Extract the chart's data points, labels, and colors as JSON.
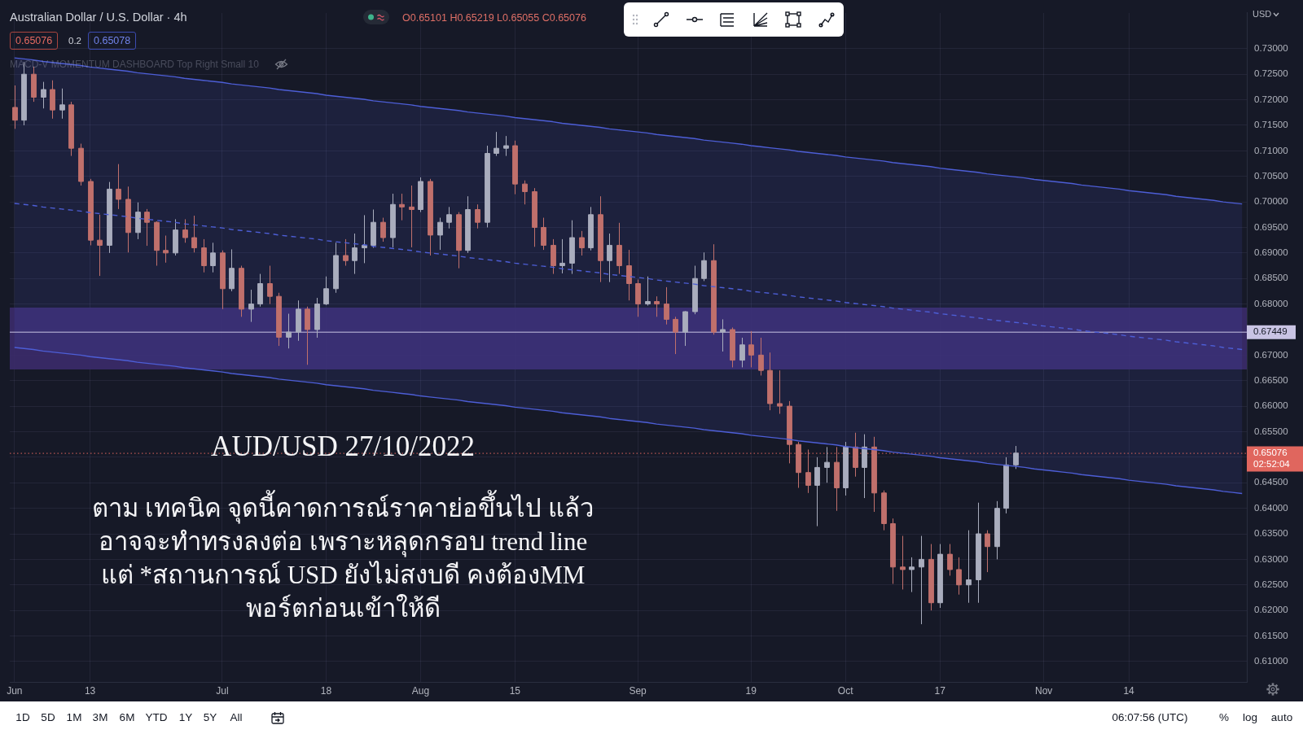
{
  "chart_data": {
    "type": "candlestick",
    "title": "Australian Dollar / U.S. Dollar · 4h",
    "ylabel": "USD",
    "categories": [
      "Jun",
      null,
      null,
      null,
      null,
      null,
      null,
      null,
      "13",
      null,
      null,
      null,
      null,
      null,
      null,
      null,
      null,
      null,
      null,
      null,
      null,
      null,
      "Jul",
      null,
      null,
      null,
      null,
      null,
      null,
      null,
      null,
      null,
      null,
      "18",
      null,
      null,
      null,
      null,
      null,
      null,
      null,
      null,
      null,
      "Aug",
      null,
      null,
      null,
      null,
      null,
      null,
      null,
      null,
      null,
      "15",
      null,
      null,
      null,
      null,
      null,
      null,
      null,
      null,
      null,
      null,
      null,
      null,
      "Sep",
      null,
      null,
      null,
      null,
      null,
      null,
      null,
      null,
      null,
      null,
      null,
      "19",
      null,
      null,
      null,
      null,
      null,
      null,
      null,
      null,
      null,
      "Oct",
      null,
      null,
      null,
      null,
      null,
      null,
      null,
      null,
      null,
      "17",
      null,
      null,
      null,
      null,
      null,
      null,
      null,
      null,
      null,
      null,
      "Nov",
      null,
      null,
      null,
      null,
      null,
      null,
      null,
      null,
      "14",
      null,
      null,
      null,
      null,
      null,
      null,
      null,
      null,
      null,
      null,
      null,
      null
    ],
    "ohlc": [
      [
        0.7185,
        0.7228,
        0.7143,
        0.716
      ],
      [
        0.716,
        0.7274,
        0.715,
        0.725
      ],
      [
        0.725,
        0.7265,
        0.7196,
        0.7205
      ],
      [
        0.7205,
        0.7235,
        0.7183,
        0.722
      ],
      [
        0.722,
        0.7238,
        0.7163,
        0.718
      ],
      [
        0.718,
        0.7222,
        0.7163,
        0.719
      ],
      [
        0.719,
        0.7196,
        0.709,
        0.7105
      ],
      [
        0.7105,
        0.7114,
        0.7032,
        0.704
      ],
      [
        0.704,
        0.7045,
        0.6915,
        0.6925
      ],
      [
        0.6925,
        0.6975,
        0.6855,
        0.6915
      ],
      [
        0.6915,
        0.7039,
        0.69,
        0.7025
      ],
      [
        0.7025,
        0.7074,
        0.6986,
        0.7005
      ],
      [
        0.7005,
        0.703,
        0.6901,
        0.694
      ],
      [
        0.694,
        0.6999,
        0.6927,
        0.698
      ],
      [
        0.698,
        0.6986,
        0.6914,
        0.696
      ],
      [
        0.696,
        0.6962,
        0.6875,
        0.6905
      ],
      [
        0.6905,
        0.6934,
        0.6881,
        0.69
      ],
      [
        0.69,
        0.6966,
        0.6895,
        0.6945
      ],
      [
        0.6945,
        0.6966,
        0.692,
        0.693
      ],
      [
        0.693,
        0.6973,
        0.6901,
        0.691
      ],
      [
        0.691,
        0.6927,
        0.6862,
        0.6875
      ],
      [
        0.6875,
        0.692,
        0.6862,
        0.69
      ],
      [
        0.69,
        0.6905,
        0.679,
        0.683
      ],
      [
        0.683,
        0.6907,
        0.6825,
        0.687
      ],
      [
        0.687,
        0.6875,
        0.6775,
        0.679
      ],
      [
        0.679,
        0.6828,
        0.6765,
        0.68
      ],
      [
        0.68,
        0.6859,
        0.6795,
        0.684
      ],
      [
        0.684,
        0.6875,
        0.68,
        0.6815
      ],
      [
        0.6815,
        0.6822,
        0.6718,
        0.6735
      ],
      [
        0.6735,
        0.6781,
        0.6713,
        0.6745
      ],
      [
        0.6745,
        0.6807,
        0.6728,
        0.679
      ],
      [
        0.679,
        0.6795,
        0.6681,
        0.675
      ],
      [
        0.675,
        0.6812,
        0.6734,
        0.68
      ],
      [
        0.68,
        0.6854,
        0.6798,
        0.683
      ],
      [
        0.683,
        0.692,
        0.6822,
        0.6895
      ],
      [
        0.6895,
        0.6927,
        0.6875,
        0.6885
      ],
      [
        0.6885,
        0.6938,
        0.6859,
        0.691
      ],
      [
        0.691,
        0.6974,
        0.688,
        0.6915
      ],
      [
        0.6915,
        0.6985,
        0.691,
        0.696
      ],
      [
        0.696,
        0.6969,
        0.6922,
        0.693
      ],
      [
        0.693,
        0.7016,
        0.6911,
        0.6995
      ],
      [
        0.6995,
        0.7016,
        0.6964,
        0.699
      ],
      [
        0.699,
        0.7032,
        0.6911,
        0.6985
      ],
      [
        0.6985,
        0.7048,
        0.698,
        0.704
      ],
      [
        0.704,
        0.7045,
        0.6895,
        0.6935
      ],
      [
        0.6935,
        0.6969,
        0.6906,
        0.696
      ],
      [
        0.696,
        0.699,
        0.6948,
        0.6975
      ],
      [
        0.6975,
        0.698,
        0.687,
        0.6905
      ],
      [
        0.6905,
        0.7011,
        0.69,
        0.6985
      ],
      [
        0.6985,
        0.6995,
        0.6948,
        0.696
      ],
      [
        0.696,
        0.711,
        0.695,
        0.7095
      ],
      [
        0.7095,
        0.7137,
        0.709,
        0.7105
      ],
      [
        0.7105,
        0.7129,
        0.709,
        0.711
      ],
      [
        0.711,
        0.712,
        0.7015,
        0.7035
      ],
      [
        0.7035,
        0.7042,
        0.6995,
        0.702
      ],
      [
        0.702,
        0.7027,
        0.6912,
        0.695
      ],
      [
        0.695,
        0.6969,
        0.6906,
        0.6915
      ],
      [
        0.6915,
        0.6927,
        0.6859,
        0.6875
      ],
      [
        0.6875,
        0.6927,
        0.686,
        0.688
      ],
      [
        0.688,
        0.6964,
        0.6859,
        0.693
      ],
      [
        0.693,
        0.6943,
        0.6895,
        0.691
      ],
      [
        0.691,
        0.699,
        0.6905,
        0.6975
      ],
      [
        0.6975,
        0.7011,
        0.6843,
        0.6885
      ],
      [
        0.6885,
        0.6938,
        0.6843,
        0.6915
      ],
      [
        0.6915,
        0.6959,
        0.6859,
        0.6875
      ],
      [
        0.6875,
        0.6906,
        0.6807,
        0.684
      ],
      [
        0.684,
        0.6848,
        0.6775,
        0.68
      ],
      [
        0.68,
        0.6854,
        0.6797,
        0.6805
      ],
      [
        0.6805,
        0.6815,
        0.6775,
        0.68
      ],
      [
        0.68,
        0.6833,
        0.676,
        0.677
      ],
      [
        0.677,
        0.6775,
        0.6702,
        0.6745
      ],
      [
        0.6745,
        0.6786,
        0.6718,
        0.6785
      ],
      [
        0.6785,
        0.6875,
        0.678,
        0.685
      ],
      [
        0.685,
        0.6901,
        0.6845,
        0.6885
      ],
      [
        0.6885,
        0.6917,
        0.674,
        0.6745
      ],
      [
        0.6745,
        0.677,
        0.6707,
        0.675
      ],
      [
        0.675,
        0.6754,
        0.6676,
        0.669
      ],
      [
        0.669,
        0.6734,
        0.6676,
        0.672
      ],
      [
        0.672,
        0.6747,
        0.6676,
        0.67
      ],
      [
        0.67,
        0.6734,
        0.666,
        0.667
      ],
      [
        0.667,
        0.6705,
        0.6592,
        0.6605
      ],
      [
        0.6605,
        0.667,
        0.6585,
        0.66
      ],
      [
        0.66,
        0.661,
        0.6488,
        0.6525
      ],
      [
        0.6525,
        0.653,
        0.644,
        0.647
      ],
      [
        0.647,
        0.6515,
        0.643,
        0.6445
      ],
      [
        0.6445,
        0.65,
        0.6365,
        0.648
      ],
      [
        0.648,
        0.652,
        0.645,
        0.649
      ],
      [
        0.649,
        0.652,
        0.6395,
        0.644
      ],
      [
        0.644,
        0.653,
        0.6425,
        0.652
      ],
      [
        0.652,
        0.6548,
        0.6462,
        0.648
      ],
      [
        0.648,
        0.6545,
        0.642,
        0.652
      ],
      [
        0.652,
        0.654,
        0.6393,
        0.643
      ],
      [
        0.643,
        0.6435,
        0.6357,
        0.637
      ],
      [
        0.637,
        0.638,
        0.6252,
        0.6285
      ],
      [
        0.6285,
        0.6346,
        0.6241,
        0.628
      ],
      [
        0.628,
        0.6304,
        0.6236,
        0.6285
      ],
      [
        0.6285,
        0.6346,
        0.6173,
        0.63
      ],
      [
        0.63,
        0.633,
        0.62,
        0.6215
      ],
      [
        0.6215,
        0.633,
        0.6205,
        0.631
      ],
      [
        0.631,
        0.633,
        0.6268,
        0.628
      ],
      [
        0.628,
        0.6304,
        0.6231,
        0.625
      ],
      [
        0.625,
        0.6357,
        0.6215,
        0.626
      ],
      [
        0.626,
        0.6411,
        0.6215,
        0.635
      ],
      [
        0.635,
        0.6357,
        0.6275,
        0.6325
      ],
      [
        0.6325,
        0.6414,
        0.63,
        0.64
      ],
      [
        0.64,
        0.65,
        0.639,
        0.6485
      ],
      [
        0.6485,
        0.6522,
        0.6477,
        0.6508
      ],
      null,
      null,
      null,
      null,
      null,
      null,
      null,
      null,
      null,
      null,
      null,
      null,
      null,
      null,
      null,
      null,
      null,
      null,
      null,
      null,
      null,
      null,
      null,
      null
    ],
    "colors": [
      "#c0706c",
      "#a9adbd",
      "#c0706c",
      "#a9adbd",
      "#c0706c",
      "#a9adbd",
      "#c0706c",
      "#c0706c",
      "#c0706c",
      "#c0706c",
      "#a9adbd",
      "#c0706c",
      "#c0706c",
      "#a9adbd",
      "#c0706c",
      "#c0706c",
      "#c0706c",
      "#a9adbd",
      "#c0706c",
      "#c0706c",
      "#c0706c",
      "#a9adbd",
      "#c0706c",
      "#a9adbd",
      "#c0706c",
      "#a9adbd",
      "#a9adbd",
      "#c0706c",
      "#c0706c",
      "#a9adbd",
      "#a9adbd",
      "#c0706c",
      "#a9adbd",
      "#a9adbd",
      "#a9adbd",
      "#c0706c",
      "#a9adbd",
      "#a9adbd",
      "#a9adbd",
      "#c0706c",
      "#a9adbd",
      "#c0706c",
      "#c0706c",
      "#a9adbd",
      "#c0706c",
      "#a9adbd",
      "#a9adbd",
      "#c0706c",
      "#a9adbd",
      "#c0706c",
      "#a9adbd",
      "#a9adbd",
      "#a9adbd",
      "#c0706c",
      "#c0706c",
      "#c0706c",
      "#c0706c",
      "#c0706c",
      "#a9adbd",
      "#a9adbd",
      "#c0706c",
      "#a9adbd",
      "#c0706c",
      "#a9adbd",
      "#c0706c",
      "#c0706c",
      "#c0706c",
      "#a9adbd",
      "#c0706c",
      "#c0706c",
      "#c0706c",
      "#a9adbd",
      "#a9adbd",
      "#a9adbd",
      "#c0706c",
      "#a9adbd",
      "#c0706c",
      "#a9adbd",
      "#c0706c",
      "#c0706c",
      "#c0706c",
      "#c0706c",
      "#c0706c",
      "#c0706c",
      "#c0706c",
      "#a9adbd",
      "#a9adbd",
      "#c0706c",
      "#a9adbd",
      "#c0706c",
      "#a9adbd",
      "#c0706c",
      "#c0706c",
      "#c0706c",
      "#c0706c",
      "#a9adbd",
      "#a9adbd",
      "#c0706c",
      "#a9adbd",
      "#c0706c",
      "#c0706c",
      "#a9adbd",
      "#a9adbd",
      "#c0706c",
      "#a9adbd",
      "#a9adbd",
      "#a9adbd",
      null,
      null,
      null,
      null,
      null,
      null,
      null,
      null,
      null,
      null,
      null,
      null,
      null,
      null,
      null,
      null,
      null,
      null,
      null,
      null,
      null,
      null,
      null,
      null
    ],
    "series": [
      {
        "type": "line",
        "color": "#4d5ed6",
        "values": [
          0.7282,
          0.728,
          0.7278,
          0.7275,
          0.7273,
          0.7271,
          0.7269,
          0.7267,
          0.7264,
          0.7262,
          0.726,
          0.7258,
          0.7256,
          0.7253,
          0.7251,
          0.7249,
          0.7247,
          0.7245,
          0.7242,
          0.724,
          0.7238,
          0.7236,
          0.7234,
          0.7231,
          0.7229,
          0.7227,
          0.7225,
          0.7223,
          0.722,
          0.7218,
          0.7216,
          0.7214,
          0.7212,
          0.7209,
          0.7207,
          0.7205,
          0.7203,
          0.7201,
          0.7198,
          0.7196,
          0.7194,
          0.7192,
          0.719,
          0.7187,
          0.7185,
          0.7183,
          0.7181,
          0.7179,
          0.7176,
          0.7174,
          0.7172,
          0.717,
          0.7168,
          0.7165,
          0.7163,
          0.7161,
          0.7159,
          0.7157,
          0.7154,
          0.7152,
          0.715,
          0.7148,
          0.7146,
          0.7143,
          0.7141,
          0.7139,
          0.7137,
          0.7135,
          0.7132,
          0.713,
          0.7128,
          0.7126,
          0.7124,
          0.7121,
          0.7119,
          0.7117,
          0.7115,
          0.7113,
          0.711,
          0.7108,
          0.7106,
          0.7104,
          0.7102,
          0.7099,
          0.7097,
          0.7095,
          0.7093,
          0.7091,
          0.7088,
          0.7086,
          0.7084,
          0.7082,
          0.708,
          0.7077,
          0.7075,
          0.7073,
          0.7071,
          0.7069,
          0.7066,
          0.7064,
          0.7062,
          0.706,
          0.7058,
          0.7055,
          0.7053,
          0.7051,
          0.7049,
          0.7047,
          0.7044,
          0.7042,
          0.704,
          0.7038,
          0.7036,
          0.7033,
          0.7031,
          0.7029,
          0.7027,
          0.7025,
          0.7022,
          0.702,
          0.7018,
          0.7016,
          0.7014,
          0.7011,
          0.7009,
          0.7007,
          0.7005,
          0.7003,
          0.7,
          0.6998,
          0.6996
        ]
      },
      {
        "type": "line",
        "color": "#4d5ed6",
        "line_style": "dashed",
        "values": [
          0.6997,
          0.6995,
          0.6993,
          0.699,
          0.6988,
          0.6986,
          0.6984,
          0.6982,
          0.6979,
          0.6977,
          0.6975,
          0.6973,
          0.6971,
          0.6968,
          0.6966,
          0.6964,
          0.6962,
          0.696,
          0.6957,
          0.6955,
          0.6953,
          0.6951,
          0.6949,
          0.6946,
          0.6944,
          0.6942,
          0.694,
          0.6938,
          0.6935,
          0.6933,
          0.6931,
          0.6929,
          0.6927,
          0.6924,
          0.6922,
          0.692,
          0.6918,
          0.6916,
          0.6913,
          0.6911,
          0.6909,
          0.6907,
          0.6905,
          0.6902,
          0.69,
          0.6898,
          0.6896,
          0.6894,
          0.6891,
          0.6889,
          0.6887,
          0.6885,
          0.6883,
          0.688,
          0.6878,
          0.6876,
          0.6874,
          0.6872,
          0.6869,
          0.6867,
          0.6865,
          0.6863,
          0.6861,
          0.6858,
          0.6856,
          0.6854,
          0.6852,
          0.685,
          0.6847,
          0.6845,
          0.6843,
          0.6841,
          0.6839,
          0.6836,
          0.6834,
          0.6832,
          0.683,
          0.6828,
          0.6825,
          0.6823,
          0.6821,
          0.6819,
          0.6817,
          0.6814,
          0.6812,
          0.681,
          0.6808,
          0.6806,
          0.6803,
          0.6801,
          0.6799,
          0.6797,
          0.6795,
          0.6792,
          0.679,
          0.6788,
          0.6786,
          0.6784,
          0.6781,
          0.6779,
          0.6777,
          0.6775,
          0.6773,
          0.677,
          0.6768,
          0.6766,
          0.6764,
          0.6762,
          0.6759,
          0.6757,
          0.6755,
          0.6753,
          0.6751,
          0.6748,
          0.6746,
          0.6744,
          0.6742,
          0.674,
          0.6737,
          0.6735,
          0.6733,
          0.6731,
          0.6729,
          0.6726,
          0.6724,
          0.6722,
          0.672,
          0.6718,
          0.6715,
          0.6713,
          0.6711
        ],
        "lower": [
          0.6715,
          0.6713,
          0.6711,
          0.6708,
          0.6706,
          0.6704,
          0.6702,
          0.67,
          0.6697,
          0.6695,
          0.6693,
          0.6691,
          0.6689,
          0.6686,
          0.6684,
          0.6682,
          0.668,
          0.6678,
          0.6675,
          0.6673,
          0.6671,
          0.6669,
          0.6667,
          0.6664,
          0.6662,
          0.666,
          0.6658,
          0.6656,
          0.6653,
          0.6651,
          0.6649,
          0.6647,
          0.6645,
          0.6642,
          0.664,
          0.6638,
          0.6636,
          0.6634,
          0.6631,
          0.6629,
          0.6627,
          0.6625,
          0.6623,
          0.662,
          0.6618,
          0.6616,
          0.6614,
          0.6612,
          0.6609,
          0.6607,
          0.6605,
          0.6603,
          0.6601,
          0.6598,
          0.6596,
          0.6594,
          0.6592,
          0.659,
          0.6587,
          0.6585,
          0.6583,
          0.6581,
          0.6579,
          0.6576,
          0.6574,
          0.6572,
          0.657,
          0.6568,
          0.6565,
          0.6563,
          0.6561,
          0.6559,
          0.6557,
          0.6554,
          0.6552,
          0.655,
          0.6548,
          0.6546,
          0.6543,
          0.6541,
          0.6539,
          0.6537,
          0.6535,
          0.6532,
          0.653,
          0.6528,
          0.6526,
          0.6524,
          0.6521,
          0.6519,
          0.6517,
          0.6515,
          0.6513,
          0.651,
          0.6508,
          0.6506,
          0.6504,
          0.6502,
          0.6499,
          0.6497,
          0.6495,
          0.6493,
          0.6491,
          0.6488,
          0.6486,
          0.6484,
          0.6482,
          0.648,
          0.6477,
          0.6475,
          0.6473,
          0.6471,
          0.6469,
          0.6466,
          0.6464,
          0.6462,
          0.646,
          0.6458,
          0.6455,
          0.6453,
          0.6451,
          0.6449,
          0.6447,
          0.6444,
          0.6442,
          0.644,
          0.6438,
          0.6436,
          0.6433,
          0.6431,
          0.6429
        ],
        "upper": [
          0.7282,
          0.728,
          0.7278,
          0.7275,
          0.7273,
          0.7271,
          0.7269,
          0.7267,
          0.7264,
          0.7262,
          0.726,
          0.7258,
          0.7256,
          0.7253,
          0.7251,
          0.7249,
          0.7247,
          0.7245,
          0.7242,
          0.724,
          0.7238,
          0.7236,
          0.7234,
          0.7231,
          0.7229,
          0.7227,
          0.7225,
          0.7223,
          0.722,
          0.7218,
          0.7216,
          0.7214,
          0.7212,
          0.7209,
          0.7207,
          0.7205,
          0.7203,
          0.7201,
          0.7198,
          0.7196,
          0.7194,
          0.7192,
          0.719,
          0.7187,
          0.7185,
          0.7183,
          0.7181,
          0.7179,
          0.7176,
          0.7174,
          0.7172,
          0.717,
          0.7168,
          0.7165,
          0.7163,
          0.7161,
          0.7159,
          0.7157,
          0.7154,
          0.7152,
          0.715,
          0.7148,
          0.7146,
          0.7143,
          0.7141,
          0.7139,
          0.7137,
          0.7135,
          0.7132,
          0.713,
          0.7128,
          0.7126,
          0.7124,
          0.7121,
          0.7119,
          0.7117,
          0.7115,
          0.7113,
          0.711,
          0.7108,
          0.7106,
          0.7104,
          0.7102,
          0.7099,
          0.7097,
          0.7095,
          0.7093,
          0.7091,
          0.7088,
          0.7086,
          0.7084,
          0.7082,
          0.708,
          0.7077,
          0.7075,
          0.7073,
          0.7071,
          0.7069,
          0.7066,
          0.7064,
          0.7062,
          0.706,
          0.7058,
          0.7055,
          0.7053,
          0.7051,
          0.7049,
          0.7047,
          0.7044,
          0.7042,
          0.704,
          0.7038,
          0.7036,
          0.7033,
          0.7031,
          0.7029,
          0.7027,
          0.7025,
          0.7022,
          0.702,
          0.7018,
          0.7016,
          0.7014,
          0.7011,
          0.7009,
          0.7007,
          0.7005,
          0.7003,
          0.7,
          0.6998,
          0.6996
        ]
      },
      {
        "type": "line",
        "color": "#4d5ed6",
        "values": [
          0.6715,
          0.6713,
          0.6711,
          0.6708,
          0.6706,
          0.6704,
          0.6702,
          0.67,
          0.6697,
          0.6695,
          0.6693,
          0.6691,
          0.6689,
          0.6686,
          0.6684,
          0.6682,
          0.668,
          0.6678,
          0.6675,
          0.6673,
          0.6671,
          0.6669,
          0.6667,
          0.6664,
          0.6662,
          0.666,
          0.6658,
          0.6656,
          0.6653,
          0.6651,
          0.6649,
          0.6647,
          0.6645,
          0.6642,
          0.664,
          0.6638,
          0.6636,
          0.6634,
          0.6631,
          0.6629,
          0.6627,
          0.6625,
          0.6623,
          0.662,
          0.6618,
          0.6616,
          0.6614,
          0.6612,
          0.6609,
          0.6607,
          0.6605,
          0.6603,
          0.6601,
          0.6598,
          0.6596,
          0.6594,
          0.6592,
          0.659,
          0.6587,
          0.6585,
          0.6583,
          0.6581,
          0.6579,
          0.6576,
          0.6574,
          0.6572,
          0.657,
          0.6568,
          0.6565,
          0.6563,
          0.6561,
          0.6559,
          0.6557,
          0.6554,
          0.6552,
          0.655,
          0.6548,
          0.6546,
          0.6543,
          0.6541,
          0.6539,
          0.6537,
          0.6535,
          0.6532,
          0.653,
          0.6528,
          0.6526,
          0.6524,
          0.6521,
          0.6519,
          0.6517,
          0.6515,
          0.6513,
          0.651,
          0.6508,
          0.6506,
          0.6504,
          0.6502,
          0.6499,
          0.6497,
          0.6495,
          0.6493,
          0.6491,
          0.6488,
          0.6486,
          0.6484,
          0.6482,
          0.648,
          0.6477,
          0.6475,
          0.6473,
          0.6471,
          0.6469,
          0.6466,
          0.6464,
          0.6462,
          0.646,
          0.6458,
          0.6455,
          0.6453,
          0.6451,
          0.6449,
          0.6447,
          0.6444,
          0.6442,
          0.644,
          0.6438,
          0.6436,
          0.6433,
          0.6431,
          0.6429
        ]
      }
    ],
    "ylim": [
      0.606,
      0.737
    ],
    "yticks": [
      {
        "value": 0.61,
        "label": "0.61000"
      },
      {
        "value": 0.615,
        "label": "0.61500"
      },
      {
        "value": 0.62,
        "label": "0.62000"
      },
      {
        "value": 0.625,
        "label": "0.62500"
      },
      {
        "value": 0.63,
        "label": "0.63000"
      },
      {
        "value": 0.635,
        "label": "0.63500"
      },
      {
        "value": 0.64,
        "label": "0.64000"
      },
      {
        "value": 0.645,
        "label": "0.64500"
      },
      {
        "value": 0.65,
        "label": null
      },
      {
        "value": 0.655,
        "label": "0.65500"
      },
      {
        "value": 0.66,
        "label": "0.66000"
      },
      {
        "value": 0.665,
        "label": "0.66500"
      },
      {
        "value": 0.67,
        "label": "0.67000"
      },
      {
        "value": 0.675,
        "label": null
      },
      {
        "value": 0.68,
        "label": "0.68000"
      },
      {
        "value": 0.685,
        "label": "0.68500"
      },
      {
        "value": 0.69,
        "label": "0.69000"
      },
      {
        "value": 0.695,
        "label": "0.69500"
      },
      {
        "value": 0.7,
        "label": "0.70000"
      },
      {
        "value": 0.705,
        "label": "0.70500"
      },
      {
        "value": 0.71,
        "label": "0.71000"
      },
      {
        "value": 0.715,
        "label": "0.71500"
      },
      {
        "value": 0.72,
        "label": "0.72000"
      },
      {
        "value": 0.725,
        "label": "0.72500"
      },
      {
        "value": 0.73,
        "label": "0.73000"
      }
    ],
    "grid": true,
    "ref_lines": [
      {
        "axis": "y",
        "value": 0.67449,
        "label": "0.67449",
        "color": "#c9c4e4"
      },
      {
        "axis": "y",
        "value": 0.65076,
        "label": "0.65076\n02:52:04",
        "color": "#e0665e",
        "line_style": "dotted"
      }
    ],
    "bands": [
      {
        "axis": "y",
        "from": 0.6672,
        "to": 0.6793,
        "color": "#3b2b6c"
      }
    ],
    "annotations": [
      "O0.65101 H0.65219 L0.65055 C0.65076",
      "0.65076",
      "0.2",
      "0.65078",
      "MACD-V MOMENTUM DASHBOARD Top Right Small 10",
      "AUD/USD 27/10/2022",
      "ตาม เทคนิค จุดนี้คาดการณ์ราคาย่อขึ้นไป แล้ว\nอาจจะทำทรงลงต่อ เพราะหลุดกรอบ trend line\nแต่ *สถานการณ์ USD ยังไม่สงบดี คงต้องMM\nพอร์ตก่อนเข้าให้ดี",
      "1D",
      "5D",
      "1M",
      "3M",
      "6M",
      "YTD",
      "1Y",
      "5Y",
      "All",
      "06:07:56 (UTC)",
      "%",
      "log",
      "auto"
    ]
  }
}
